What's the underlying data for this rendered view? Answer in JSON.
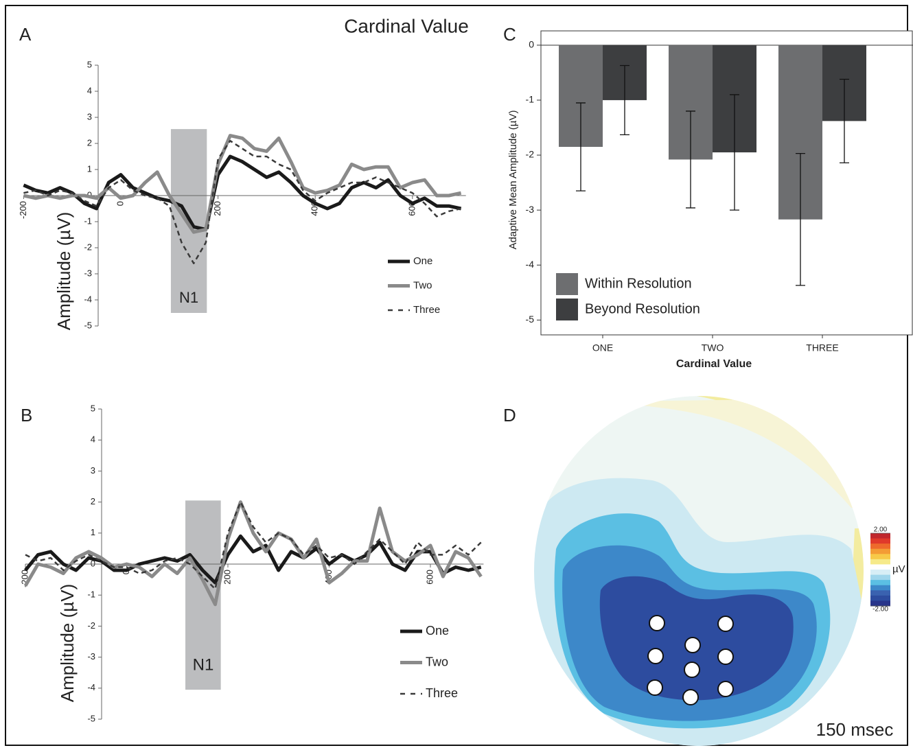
{
  "chart_data": [
    {
      "type": "line",
      "panel_label": "A",
      "title": "Cardinal Value",
      "y_label": "Amplitude (µV)",
      "x": [
        -200,
        -175,
        -150,
        -125,
        -100,
        -75,
        -50,
        -25,
        0,
        25,
        50,
        75,
        100,
        125,
        150,
        175,
        200,
        225,
        250,
        275,
        300,
        325,
        350,
        375,
        400,
        425,
        450,
        475,
        500,
        525,
        550,
        575,
        600,
        625,
        650,
        675,
        700
      ],
      "series": [
        {
          "name": "One",
          "color": "#1a1a1a",
          "line_style": "solid",
          "values": [
            0.4,
            0.2,
            0.1,
            0.3,
            0.1,
            -0.3,
            -0.5,
            0.5,
            0.8,
            0.3,
            0.1,
            -0.1,
            -0.2,
            -0.4,
            -1.2,
            -1.3,
            0.8,
            1.5,
            1.3,
            1.0,
            0.7,
            0.9,
            0.5,
            0.0,
            -0.3,
            -0.5,
            -0.3,
            0.3,
            0.5,
            0.3,
            0.6,
            0.0,
            -0.3,
            -0.1,
            -0.4,
            -0.4,
            -0.5
          ]
        },
        {
          "name": "Two",
          "color": "#8a8a8a",
          "line_style": "solid",
          "values": [
            0.0,
            -0.1,
            0.0,
            -0.1,
            0.0,
            0.0,
            -0.1,
            0.3,
            -0.1,
            0.0,
            0.5,
            0.9,
            0.0,
            -0.7,
            -1.4,
            -1.3,
            1.2,
            2.3,
            2.2,
            1.8,
            1.7,
            2.2,
            1.3,
            0.3,
            0.1,
            0.2,
            0.4,
            1.2,
            1.0,
            1.1,
            1.1,
            0.3,
            0.5,
            0.6,
            0.0,
            0.0,
            0.1
          ]
        },
        {
          "name": "Three",
          "color": "#3a3a3a",
          "line_style": "dashed",
          "values": [
            0.1,
            0.2,
            0.0,
            0.2,
            0.1,
            -0.2,
            -0.4,
            0.3,
            0.6,
            0.2,
            0.0,
            -0.1,
            -0.4,
            -1.8,
            -2.6,
            -1.8,
            1.4,
            2.1,
            1.8,
            1.5,
            1.5,
            1.2,
            1.0,
            0.2,
            -0.2,
            0.1,
            0.3,
            0.5,
            0.5,
            0.7,
            0.5,
            0.3,
            0.1,
            -0.3,
            -0.8,
            -0.6,
            -0.5
          ]
        }
      ],
      "band": {
        "label": "N1",
        "xrange": [
          103,
          177
        ],
        "yrange": [
          -4.5,
          2.55
        ]
      },
      "xlim": [
        -200,
        710
      ],
      "ylim": [
        -5,
        5
      ],
      "xticks": [
        -200,
        0,
        200,
        400,
        600
      ],
      "yticks": [
        -5,
        -4,
        -3,
        -2,
        -1,
        0,
        1,
        2,
        3,
        4,
        5
      ]
    },
    {
      "type": "line",
      "panel_label": "B",
      "y_label": "Amplitude (µV)",
      "x": [
        -200,
        -175,
        -150,
        -125,
        -100,
        -75,
        -50,
        -25,
        0,
        25,
        50,
        75,
        100,
        125,
        150,
        175,
        200,
        225,
        250,
        275,
        300,
        325,
        350,
        375,
        400,
        425,
        450,
        475,
        500,
        525,
        550,
        575,
        600,
        625,
        650,
        675,
        700
      ],
      "series": [
        {
          "name": "One",
          "color": "#1a1a1a",
          "line_style": "solid",
          "values": [
            -0.2,
            0.3,
            0.4,
            0.0,
            -0.2,
            0.2,
            0.1,
            -0.2,
            -0.2,
            0.0,
            0.1,
            0.2,
            0.1,
            0.3,
            -0.2,
            -0.6,
            0.3,
            0.9,
            0.4,
            0.6,
            -0.2,
            0.4,
            0.2,
            0.5,
            0.0,
            0.3,
            0.1,
            0.3,
            0.7,
            0.0,
            -0.2,
            0.4,
            0.4,
            -0.3,
            -0.1,
            -0.2,
            -0.1
          ]
        },
        {
          "name": "Two",
          "color": "#8a8a8a",
          "line_style": "solid",
          "values": [
            -0.7,
            0.0,
            -0.1,
            -0.3,
            0.2,
            0.4,
            0.2,
            -0.1,
            0.0,
            -0.1,
            -0.4,
            0.0,
            -0.3,
            0.2,
            -0.5,
            -1.3,
            0.8,
            2.0,
            1.0,
            0.4,
            1.0,
            0.8,
            0.2,
            0.8,
            -0.6,
            -0.3,
            0.1,
            0.1,
            1.8,
            0.4,
            0.1,
            0.3,
            0.6,
            -0.4,
            0.4,
            0.2,
            -0.4
          ]
        },
        {
          "name": "Three",
          "color": "#3a3a3a",
          "line_style": "dashed",
          "values": [
            0.3,
            0.1,
            0.2,
            -0.2,
            0.1,
            0.3,
            0.1,
            -0.1,
            -0.1,
            -0.3,
            -0.2,
            0.1,
            0.2,
            0.0,
            -0.4,
            -0.8,
            1.0,
            2.0,
            1.2,
            0.7,
            1.0,
            0.8,
            0.3,
            0.6,
            0.2,
            0.3,
            0.0,
            0.4,
            0.8,
            0.4,
            0.0,
            0.7,
            0.3,
            0.3,
            0.6,
            0.3,
            0.7
          ]
        }
      ],
      "band": {
        "label": "N1",
        "xrange": [
          116,
          186
        ],
        "yrange": [
          -4.05,
          2.05
        ]
      },
      "xlim": [
        -200,
        705
      ],
      "ylim": [
        -5,
        5
      ],
      "xticks": [
        -200,
        0,
        200,
        400,
        600
      ],
      "yticks": [
        -5,
        -4,
        -3,
        -2,
        -1,
        0,
        1,
        2,
        3,
        4,
        5
      ]
    },
    {
      "type": "bar",
      "panel_label": "C",
      "x_label": "Cardinal Value",
      "y_label": "Adaptive Mean Amplitude (µV)",
      "categories": [
        "ONE",
        "TWO",
        "THREE"
      ],
      "series": [
        {
          "name": "Within Resolution",
          "color": "#6d6e70",
          "values": [
            -1.85,
            -2.08,
            -3.17
          ],
          "errors": [
            0.8,
            0.88,
            1.2
          ]
        },
        {
          "name": "Beyond Resolution",
          "color": "#3d3e40",
          "values": [
            -1.0,
            -1.95,
            -1.38
          ],
          "errors": [
            0.63,
            1.05,
            0.76
          ]
        }
      ],
      "ylim": [
        -5.27,
        0.26
      ],
      "yticks": [
        -5,
        -4,
        -3,
        -2,
        -1,
        0
      ]
    },
    {
      "type": "topomap",
      "panel_label": "D",
      "caption": "150 msec",
      "colorbar": {
        "label": "µV",
        "ticks": [
          {
            "value": 2,
            "label": "2.00"
          },
          {
            "value": -2,
            "label": "-2.00"
          }
        ]
      }
    }
  ]
}
